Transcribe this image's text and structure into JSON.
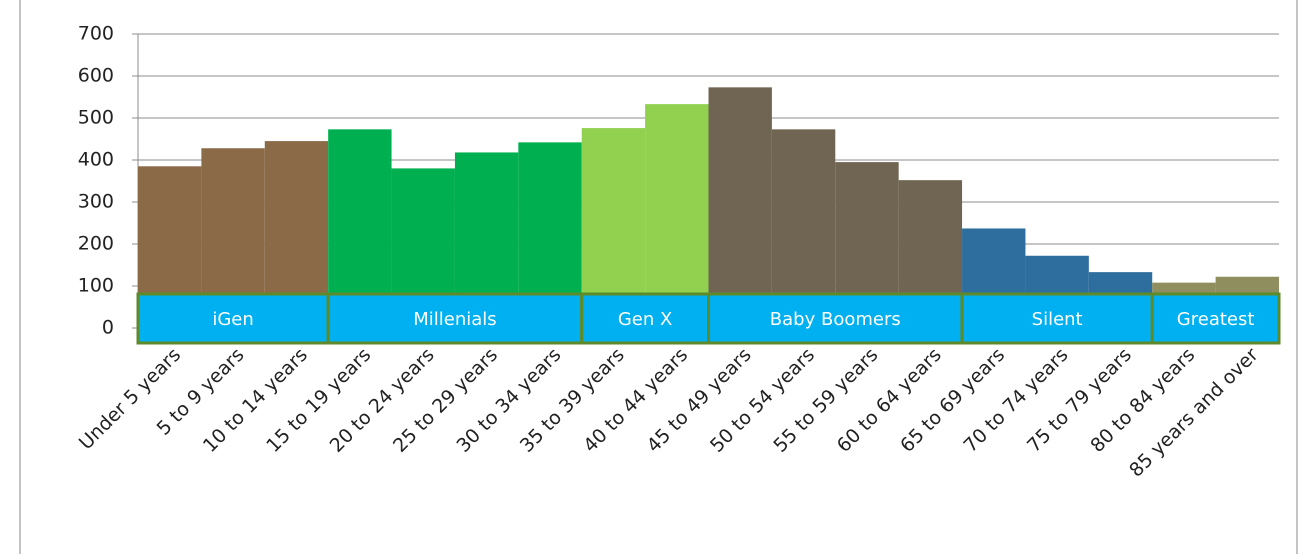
{
  "chart_data": {
    "type": "bar",
    "categories": [
      "Under 5 years",
      "5 to 9 years",
      "10 to 14 years",
      "15 to 19 years",
      "20 to 24 years",
      "25 to 29 years",
      "30 to 34 years",
      "35 to 39 years",
      "40 to 44 years",
      "45 to 49 years",
      "50 to 54 years",
      "55 to 59 years",
      "60 to 64 years",
      "65 to 69 years",
      "70 to 74 years",
      "75 to 79 years",
      "80 to 84 years",
      "85 years and over"
    ],
    "values": [
      385,
      428,
      445,
      473,
      380,
      418,
      442,
      476,
      533,
      573,
      473,
      395,
      352,
      237,
      172,
      133,
      108,
      122
    ],
    "groups": [
      {
        "name": "iGen",
        "span": 3,
        "color": "#8b6a47"
      },
      {
        "name": "Millenials",
        "span": 4,
        "color": "#00b050"
      },
      {
        "name": "Gen X",
        "span": 2,
        "color": "#92d050"
      },
      {
        "name": "Baby Boomers",
        "span": 4,
        "color": "#706552"
      },
      {
        "name": "Silent",
        "span": 3,
        "color": "#2e6e9e"
      },
      {
        "name": "Greatest",
        "span": 2,
        "color": "#8e8e5e"
      }
    ],
    "group_box_color": "#00b0f0",
    "ylim": [
      0,
      700
    ],
    "yticks": [
      0,
      100,
      200,
      300,
      400,
      500,
      600,
      700
    ],
    "grid": true
  }
}
